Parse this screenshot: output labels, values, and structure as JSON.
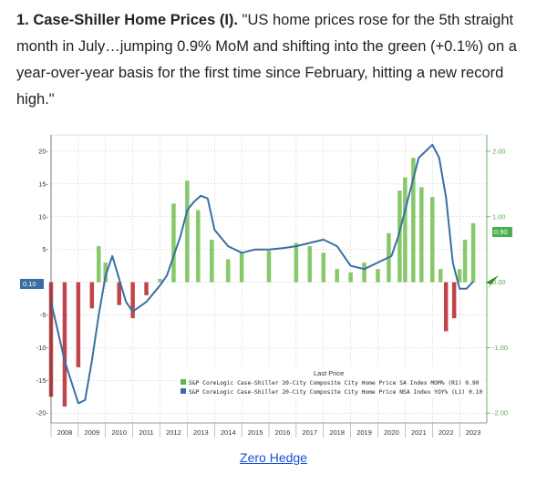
{
  "article": {
    "headline_lead": "1. Case-Shiller Home Prices (I).",
    "headline_quote": " \"US home prices rose for the 5th straight month in July…jumping 0.9% MoM and shifting into the green (+0.1%) on a year-over-year basis for the first time since February, hitting a new record high.\"",
    "source_link": "Zero Hedge"
  },
  "colors": {
    "mom_bars_positive": "#86c86a",
    "mom_bars_negative": "#c0454a",
    "yoy_line": "#3a6fa5",
    "right_axis": "#4ab04a",
    "left_axis": "#333333"
  },
  "chart_data": {
    "type": "bar",
    "legend": {
      "title": "Last Price",
      "entries": [
        {
          "label": "S&P CoreLogic Case-Shiller 20-City Composite City Home Price SA Index MOM% (R1) 0.90",
          "color": "#5fb64a"
        },
        {
          "label": "S&P CoreLogic Case-Shiller 20-City Composite City Home Price NSA Index YOY% (L1) 0.10",
          "color": "#3a6fa5"
        }
      ],
      "position": "bottom-right"
    },
    "left_axis": {
      "ticks": [
        20,
        15,
        10,
        5,
        0,
        -5,
        -10,
        -15,
        -20
      ],
      "tick_labels": [
        "20-",
        "15-",
        "10-",
        "5-",
        "",
        "-5-",
        "-10-",
        "-15-",
        "-20-"
      ],
      "range": [
        -21.5,
        22.5
      ]
    },
    "right_axis": {
      "ticks": [
        2,
        1,
        0,
        -1,
        -2
      ],
      "tick_labels": [
        "2.00",
        "1.00",
        "0.00",
        "-1.00",
        "-2.00"
      ],
      "range": [
        -2.15,
        2.25
      ]
    },
    "x_categories": [
      "2008",
      "2009",
      "2010",
      "2011",
      "2012",
      "2013",
      "2014",
      "2015",
      "2016",
      "2017",
      "2018",
      "2019",
      "2020",
      "2021",
      "2022",
      "2023"
    ],
    "last_value_labels": {
      "yoy": "0.10",
      "mom": "0.90"
    },
    "grid": true,
    "series": [
      {
        "name": "S&P CoreLogic Case-Shiller 20-City Composite City Home Price SA Index MOM% (R1)",
        "axis": "right",
        "style": "bar",
        "x": [
          2008.0,
          2008.5,
          2009.0,
          2009.5,
          2009.75,
          2010.0,
          2010.5,
          2011.0,
          2011.5,
          2012.0,
          2012.5,
          2013.0,
          2013.4,
          2013.9,
          2014.5,
          2015.0,
          2016.0,
          2017.0,
          2017.5,
          2018.0,
          2018.5,
          2019.0,
          2019.5,
          2020.0,
          2020.4,
          2020.8,
          2021.0,
          2021.3,
          2021.6,
          2022.0,
          2022.3,
          2022.5,
          2022.8,
          2023.0,
          2023.2,
          2023.5
        ],
        "values": [
          -1.75,
          -1.9,
          -1.3,
          -0.4,
          0.55,
          0.3,
          -0.35,
          -0.55,
          -0.2,
          0.05,
          1.2,
          1.55,
          1.1,
          0.65,
          0.35,
          0.45,
          0.48,
          0.6,
          0.55,
          0.45,
          0.2,
          0.15,
          0.3,
          0.2,
          0.75,
          1.4,
          1.6,
          1.9,
          1.45,
          1.3,
          0.2,
          -0.75,
          -0.55,
          0.2,
          0.65,
          0.9
        ]
      },
      {
        "name": "S&P CoreLogic Case-Shiller 20-City Composite City Home Price NSA Index YOY% (L1)",
        "axis": "left",
        "style": "line",
        "x": [
          2008.0,
          2008.5,
          2009.0,
          2009.25,
          2009.5,
          2009.75,
          2010.0,
          2010.25,
          2010.5,
          2010.75,
          2011.0,
          2011.5,
          2012.0,
          2012.25,
          2012.5,
          2012.75,
          2013.0,
          2013.25,
          2013.5,
          2013.75,
          2014.0,
          2014.5,
          2015.0,
          2015.5,
          2016.0,
          2016.5,
          2017.0,
          2017.5,
          2018.0,
          2018.5,
          2019.0,
          2019.5,
          2020.0,
          2020.5,
          2020.75,
          2021.0,
          2021.25,
          2021.5,
          2021.75,
          2022.0,
          2022.25,
          2022.5,
          2022.75,
          2023.0,
          2023.25,
          2023.5
        ],
        "values": [
          -3.0,
          -12.0,
          -18.5,
          -18.0,
          -12.0,
          -5.0,
          1.0,
          4.0,
          0.5,
          -3.0,
          -4.5,
          -3.0,
          -0.5,
          1.0,
          4.0,
          7.0,
          11.0,
          12.3,
          13.2,
          12.8,
          8.0,
          5.5,
          4.5,
          5.0,
          5.0,
          5.2,
          5.5,
          6.0,
          6.5,
          5.5,
          2.5,
          2.0,
          3.0,
          4.0,
          7.0,
          11.0,
          15.0,
          19.0,
          20.0,
          21.0,
          19.0,
          13.0,
          3.0,
          -1.0,
          -1.0,
          0.1
        ]
      }
    ]
  }
}
